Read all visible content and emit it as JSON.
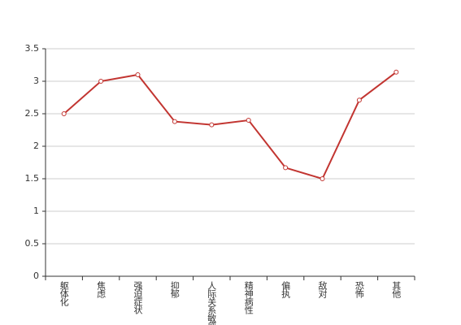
{
  "chart_data": {
    "type": "line",
    "categories": [
      "躯体化",
      "焦虑",
      "强迫症状",
      "抑郁",
      "人际关系敏感",
      "精神病性",
      "偏执",
      "敌对",
      "恐怖",
      "其他"
    ],
    "values": [
      2.5,
      3.0,
      3.1,
      2.38,
      2.33,
      2.4,
      1.67,
      1.5,
      2.71,
      3.14
    ],
    "color": "#c23531",
    "ylim": [
      0,
      3.5
    ],
    "yticks": [
      0,
      0.5,
      1,
      1.5,
      2,
      2.5,
      3,
      3.5
    ],
    "grid": true
  }
}
